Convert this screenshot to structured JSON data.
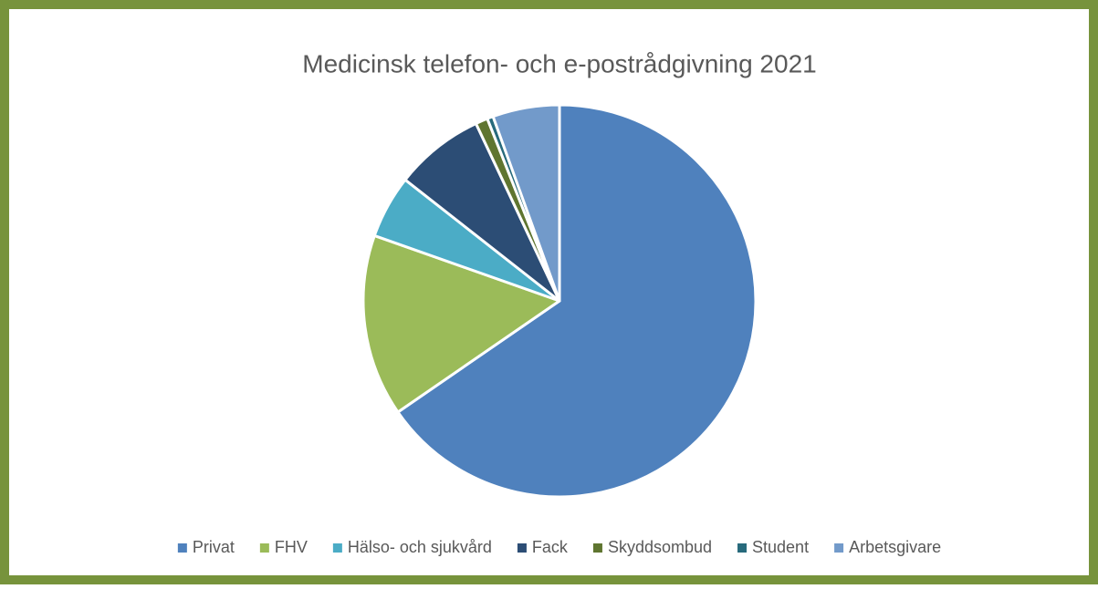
{
  "chart_data": {
    "type": "pie",
    "title": "Medicinsk telefon- och e-postrådgivning 2021",
    "categories": [
      "Privat",
      "FHV",
      "Hälso- och sjukvård",
      "Fack",
      "Skyddsombud",
      "Student",
      "Arbetsgivare"
    ],
    "values": [
      65.4,
      15.0,
      5.2,
      7.4,
      1.0,
      0.5,
      5.5
    ],
    "colors": [
      "#4f81bd",
      "#9bbb59",
      "#4bacc6",
      "#2c4d75",
      "#5f7530",
      "#276a7c",
      "#729aca"
    ],
    "legend": "bottom"
  }
}
